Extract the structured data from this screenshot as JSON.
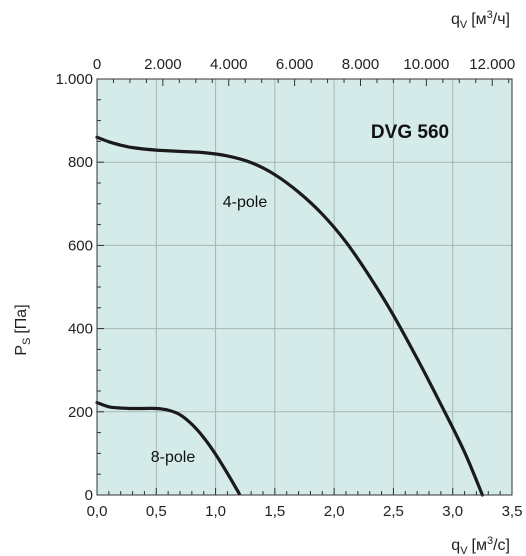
{
  "chart_data": {
    "type": "line",
    "title": "DVG 560",
    "xlabel": {
      "base": "q",
      "sub": "V",
      "unit_pre": "[м",
      "unit_sup": "3",
      "unit_post": "/с]"
    },
    "x2label": {
      "base": "q",
      "sub": "V",
      "unit_pre": "[м",
      "unit_sup": "3",
      "unit_post": "/ч]"
    },
    "ylabel": {
      "base": "P",
      "sub": "S",
      "unit": "[Па]"
    },
    "xlim": [
      0,
      3.5
    ],
    "x2lim": [
      0,
      12600
    ],
    "ylim": [
      0,
      1000
    ],
    "x_ticks": [
      0,
      0.5,
      1.0,
      1.5,
      2.0,
      2.5,
      3.0,
      3.5
    ],
    "x_tick_labels": [
      "0,0",
      "0,5",
      "1,0",
      "1,5",
      "2,0",
      "2,5",
      "3,0",
      "3,5"
    ],
    "x2_ticks": [
      0,
      2000,
      4000,
      6000,
      8000,
      10000,
      12000
    ],
    "x2_tick_labels": [
      "0",
      "2.000",
      "4.000",
      "6.000",
      "8.000",
      "10.000",
      "12.000"
    ],
    "y_ticks": [
      0,
      200,
      400,
      600,
      800,
      1000
    ],
    "y_tick_labels": [
      "0",
      "200",
      "400",
      "600",
      "800",
      "1.000"
    ],
    "grid": true,
    "background_color": "#d4ebe9",
    "line_color": "#1a1a1a",
    "series": [
      {
        "name": "4-pole",
        "x": [
          0.0,
          0.1,
          0.2,
          0.3,
          0.5,
          0.7,
          0.9,
          1.1,
          1.3,
          1.5,
          1.7,
          1.9,
          2.1,
          2.3,
          2.5,
          2.7,
          2.9,
          3.1,
          3.25
        ],
        "y": [
          860,
          849,
          841,
          835,
          829,
          826,
          823,
          815,
          799,
          770,
          728,
          675,
          608,
          525,
          432,
          328,
          218,
          103,
          0
        ]
      },
      {
        "name": "8-pole",
        "x": [
          0.0,
          0.1,
          0.2,
          0.3,
          0.4,
          0.5,
          0.6,
          0.7,
          0.8,
          0.9,
          1.0,
          1.1,
          1.2
        ],
        "y": [
          222,
          212,
          209,
          208,
          208,
          208,
          204,
          193,
          170,
          138,
          98,
          52,
          3
        ]
      }
    ]
  }
}
